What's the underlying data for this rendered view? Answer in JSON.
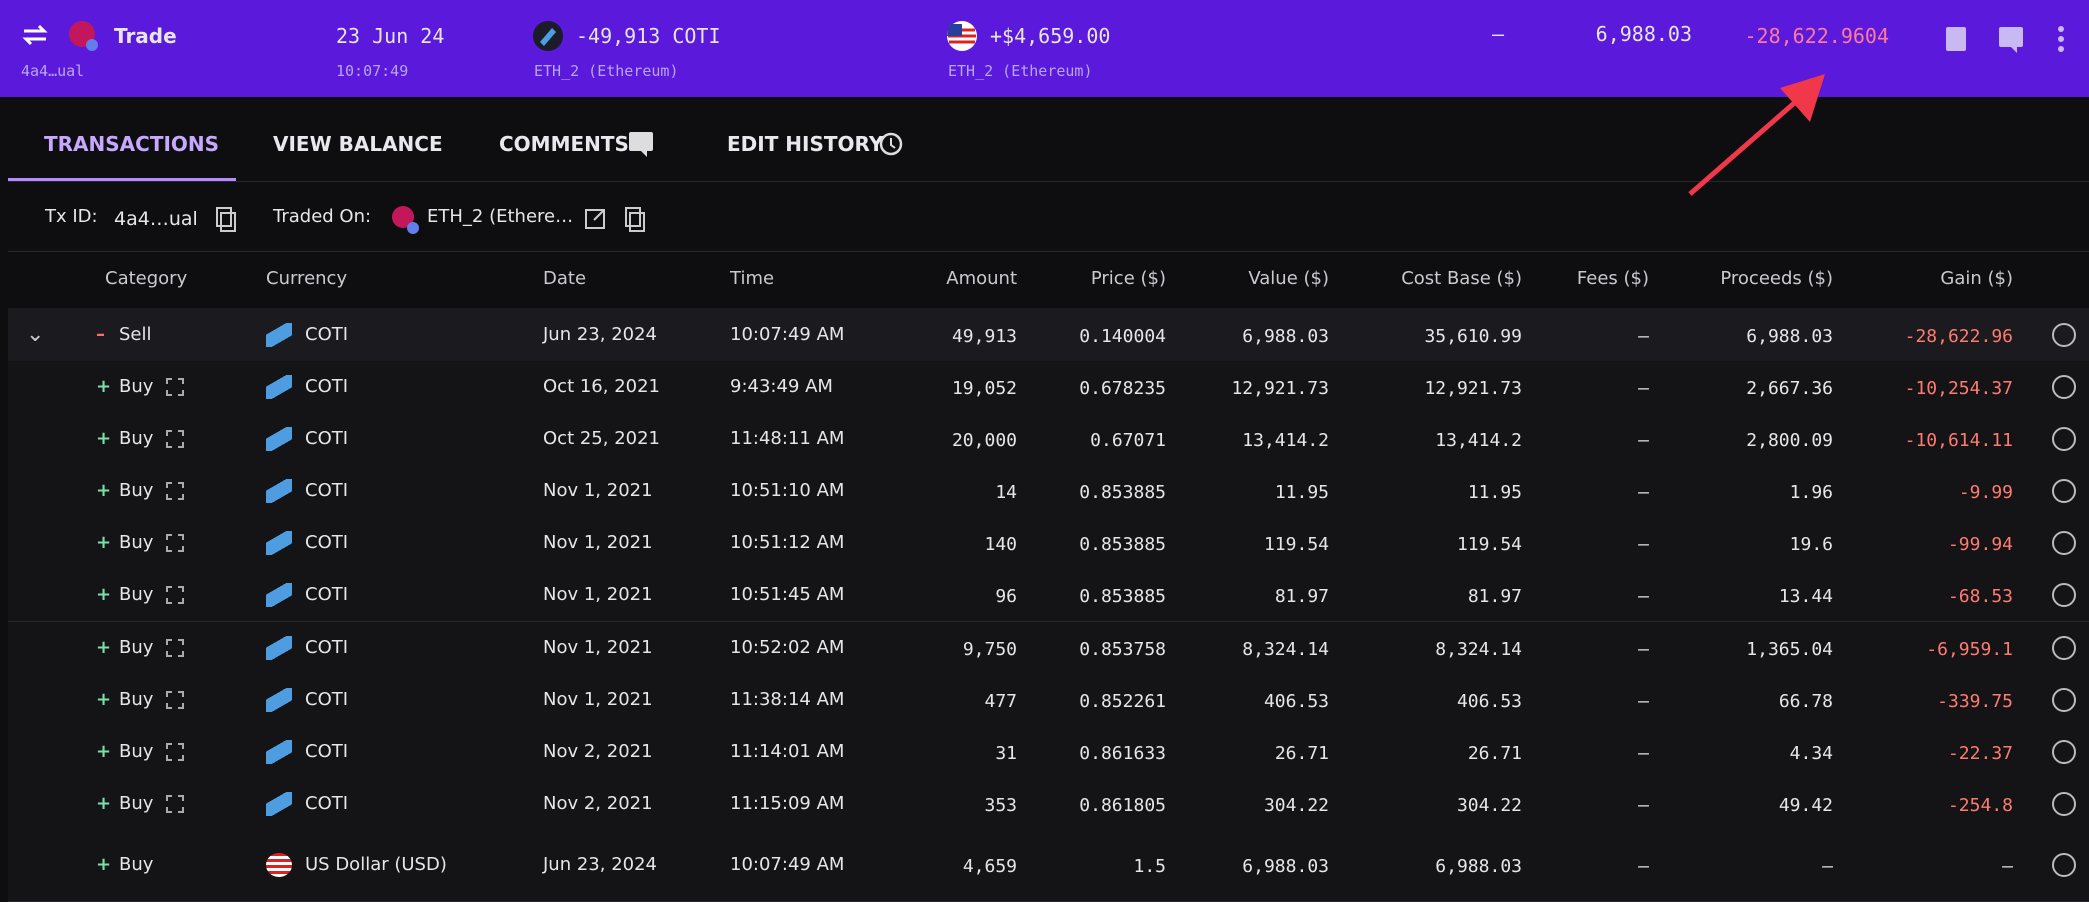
{
  "header": {
    "action": "Trade",
    "id": "4a4…ual",
    "date": "23 Jun 24",
    "time": "10:07:49",
    "sent": "-49,913 COTI",
    "sent_wallet": "ETH_2 (Ethereum)",
    "received": "+$4,659.00",
    "received_wallet": "ETH_2 (Ethereum)",
    "fee": "–",
    "value": "6,988.03",
    "gain": "-28,622.9604"
  },
  "tabs": [
    "TRANSACTIONS",
    "VIEW BALANCE",
    "COMMENTS",
    "EDIT HISTORY"
  ],
  "info": {
    "tx_id_label": "Tx ID:",
    "tx_id": "4a4…ual",
    "traded_on_label": "Traded On:",
    "traded_on": "ETH_2 (Ethere…"
  },
  "table": {
    "columns": [
      "Category",
      "Currency",
      "Date",
      "Time",
      "Amount",
      "Price ($)",
      "Value ($)",
      "Cost Base ($)",
      "Fees ($)",
      "Proceeds ($)",
      "Gain ($)"
    ],
    "rows": [
      [
        "–",
        "Sell",
        "COTI",
        "Jun 23, 2024",
        "10:07:49 AM",
        "49,913",
        "0.140004",
        "6,988.03",
        "35,610.99",
        "–",
        "6,988.03",
        "-28,622.96"
      ],
      [
        "+",
        "Buy",
        "COTI",
        "Oct 16, 2021",
        "9:43:49 AM",
        "19,052",
        "0.678235",
        "12,921.73",
        "12,921.73",
        "–",
        "2,667.36",
        "-10,254.37"
      ],
      [
        "+",
        "Buy",
        "COTI",
        "Oct 25, 2021",
        "11:48:11 AM",
        "20,000",
        "0.67071",
        "13,414.2",
        "13,414.2",
        "–",
        "2,800.09",
        "-10,614.11"
      ],
      [
        "+",
        "Buy",
        "COTI",
        "Nov 1, 2021",
        "10:51:10 AM",
        "14",
        "0.853885",
        "11.95",
        "11.95",
        "–",
        "1.96",
        "-9.99"
      ],
      [
        "+",
        "Buy",
        "COTI",
        "Nov 1, 2021",
        "10:51:12 AM",
        "140",
        "0.853885",
        "119.54",
        "119.54",
        "–",
        "19.6",
        "-99.94"
      ],
      [
        "+",
        "Buy",
        "COTI",
        "Nov 1, 2021",
        "10:51:45 AM",
        "96",
        "0.853885",
        "81.97",
        "81.97",
        "–",
        "13.44",
        "-68.53"
      ],
      [
        "+",
        "Buy",
        "COTI",
        "Nov 1, 2021",
        "10:52:02 AM",
        "9,750",
        "0.853758",
        "8,324.14",
        "8,324.14",
        "–",
        "1,365.04",
        "-6,959.1"
      ],
      [
        "+",
        "Buy",
        "COTI",
        "Nov 1, 2021",
        "11:38:14 AM",
        "477",
        "0.852261",
        "406.53",
        "406.53",
        "–",
        "66.78",
        "-339.75"
      ],
      [
        "+",
        "Buy",
        "COTI",
        "Nov 2, 2021",
        "11:14:01 AM",
        "31",
        "0.861633",
        "26.71",
        "26.71",
        "–",
        "4.34",
        "-22.37"
      ],
      [
        "+",
        "Buy",
        "COTI",
        "Nov 2, 2021",
        "11:15:09 AM",
        "353",
        "0.861805",
        "304.22",
        "304.22",
        "–",
        "49.42",
        "-254.8"
      ],
      [
        "+",
        "Buy",
        "US Dollar (USD)",
        "Jun 23, 2024",
        "10:07:49 AM",
        "4,659",
        "1.5",
        "6,988.03",
        "6,988.03",
        "–",
        "–",
        "–"
      ]
    ]
  }
}
